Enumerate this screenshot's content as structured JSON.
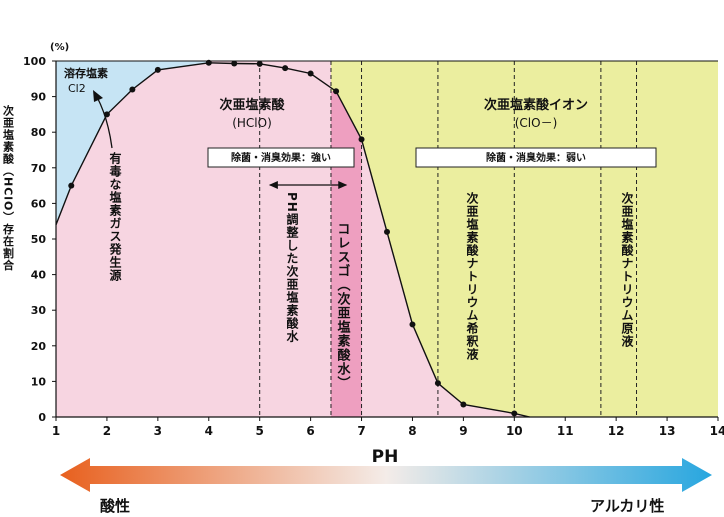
{
  "chart_data": {
    "type": "line",
    "x": [
      1,
      1.3,
      2,
      2.5,
      3,
      4,
      4.5,
      5,
      5.5,
      6,
      6.5,
      7,
      7.5,
      8,
      8.5,
      9,
      10,
      10.3
    ],
    "values": [
      54,
      65,
      85,
      92,
      97.5,
      99.5,
      99.3,
      99.2,
      98,
      96.5,
      91.5,
      78,
      52,
      26,
      9.5,
      3.5,
      1,
      0
    ],
    "xlim": [
      1,
      14
    ],
    "ylim": [
      0,
      100
    ],
    "xticks": [
      "1",
      "2",
      "3",
      "4",
      "5",
      "6",
      "7",
      "8",
      "9",
      "10",
      "11",
      "12",
      "13",
      "14"
    ],
    "yticks": [
      "0",
      "10",
      "20",
      "30",
      "40",
      "50",
      "60",
      "70",
      "80",
      "90",
      "100"
    ],
    "xlabel": "PH",
    "y_unit": "(%)",
    "ylabel": "次亜塩素酸（HClO）存在割合",
    "regions": [
      {
        "x0": 1,
        "x1": 6.4,
        "color": "#f7d5e1",
        "pattern": "chlorine-triangle",
        "color2": "#c6e4f4"
      },
      {
        "x0": 6.4,
        "x1": 7.0,
        "color": "#ee9fc0"
      },
      {
        "x0": 7.0,
        "x1": 14,
        "color": "#ebee9f",
        "pattern": "curve-split"
      }
    ],
    "dashed_lines_x": [
      5.0,
      6.4,
      7.0,
      8.5,
      10.0,
      11.7,
      12.4
    ],
    "labels": {
      "chlorine": "溶存塩素",
      "chlorine_formula": "Cl2",
      "toxic": "有毒な塩素ガス発生源",
      "hclo": "次亜塩素酸",
      "hclo_formula": "(HClO)",
      "clo": "次亜塩素酸イオン",
      "clo_formula": "(ClO－)",
      "effect_strong": "除菌・消臭効果：強い",
      "effect_weak": "除菌・消臭効果：弱い",
      "ph_adjusted": "PH調整した次亜塩素酸水",
      "kolesgo": "コレスゴ（次亜塩素酸水）",
      "sodium_dilute": "次亜塩素酸ナトリウム希釈液",
      "sodium_stock": "次亜塩素酸ナトリウム原液"
    }
  },
  "scale": {
    "left": "酸性",
    "right": "アルカリ性",
    "left_color": "#e8601e",
    "right_color": "#27a6df"
  },
  "colors": {
    "curve": "#111111",
    "point": "#111111"
  }
}
